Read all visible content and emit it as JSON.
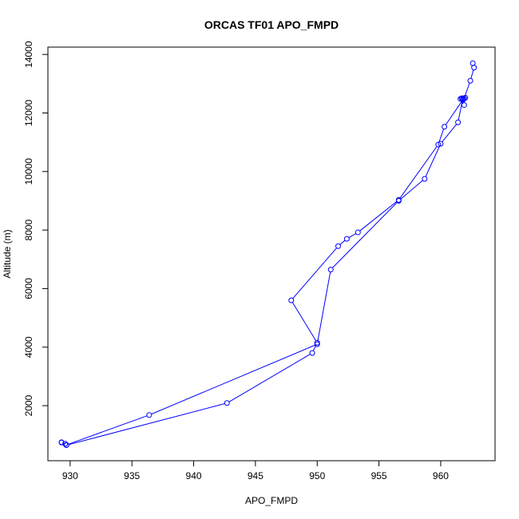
{
  "chart_data": {
    "type": "scatter",
    "title": "ORCAS TF01 APO_FMPD",
    "xlabel": "APO_FMPD",
    "ylabel": "Altitude (m)",
    "xlim": [
      928.2,
      964.4
    ],
    "ylim": [
      120,
      14250
    ],
    "xticks": [
      930,
      935,
      940,
      945,
      950,
      955,
      960
    ],
    "yticks": [
      2000,
      4000,
      6000,
      8000,
      10000,
      12000,
      14000
    ],
    "grid": false,
    "color": "#0000ff",
    "series": [
      {
        "x": [
          962.6,
          962.7,
          962.4,
          961.9,
          961.8,
          961.7,
          961.6,
          961.9,
          961.8,
          960.3,
          959.8,
          956.6,
          953.3,
          952.4,
          951.7,
          947.9,
          950.0,
          949.6,
          942.7,
          929.7,
          929.3,
          929.3,
          929.6,
          929.7,
          936.4,
          950.0,
          951.1,
          956.6,
          958.7,
          960.0,
          961.4,
          961.8,
          962.0
        ],
        "y": [
          13700,
          13550,
          13100,
          12500,
          12480,
          12500,
          12480,
          12270,
          12450,
          11530,
          10920,
          9030,
          7920,
          7700,
          7450,
          5600,
          4150,
          3800,
          2090,
          650,
          740,
          750,
          700,
          660,
          1680,
          4100,
          6650,
          9000,
          9750,
          10950,
          11680,
          12500,
          12520
        ]
      }
    ]
  }
}
